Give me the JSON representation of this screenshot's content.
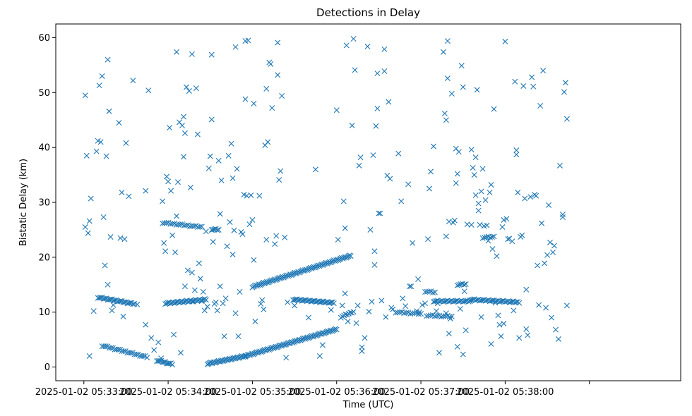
{
  "chart_data": {
    "type": "scatter",
    "title": "Detections in Delay",
    "xlabel": "Time (UTC)",
    "ylabel": "Bistatic Delay (km)",
    "x_unit": "seconds after 2025-01-02 05:33:00",
    "xlim": [
      -20,
      425
    ],
    "ylim": [
      -2.5,
      62.5
    ],
    "xticks": [
      0,
      60,
      120,
      180,
      240,
      300,
      360
    ],
    "xtick_labels": [
      "2025-01-02 05:33:00",
      "2025-01-02 05:34:00",
      "2025-01-02 05:35:00",
      "2025-01-02 05:36:00",
      "2025-01-02 05:37:00",
      "2025-01-02 05:38:00",
      ""
    ],
    "yticks": [
      0,
      10,
      20,
      30,
      40,
      50,
      60
    ],
    "ytick_labels": [
      "0",
      "10",
      "20",
      "30",
      "40",
      "50",
      "60"
    ],
    "marker": "x",
    "color": "#1f77b4",
    "grid": false,
    "tracks": [
      {
        "x_start": 10,
        "y_start": 12.7,
        "x_end": 36,
        "y_end": 11.5,
        "step": 1
      },
      {
        "x_start": 13,
        "y_start": 3.9,
        "x_end": 45,
        "y_end": 1.8,
        "step": 1.3
      },
      {
        "x_start": 52,
        "y_start": 1.2,
        "x_end": 63,
        "y_end": 0.5,
        "step": 1
      },
      {
        "x_start": 56,
        "y_start": 26.3,
        "x_end": 84,
        "y_end": 25.5,
        "step": 1.4
      },
      {
        "x_start": 58,
        "y_start": 11.6,
        "x_end": 87,
        "y_end": 12.3,
        "step": 0.9
      },
      {
        "x_start": 88,
        "y_start": 0.6,
        "x_end": 115,
        "y_end": 2.0,
        "step": 0.8
      },
      {
        "x_start": 115,
        "y_start": 2.0,
        "x_end": 180,
        "y_end": 6.9,
        "step": 0.8
      },
      {
        "x_start": 91,
        "y_start": 25.1,
        "x_end": 96,
        "y_end": 25.0,
        "step": 1
      },
      {
        "x_start": 120,
        "y_start": 14.6,
        "x_end": 190,
        "y_end": 20.3,
        "step": 0.8
      },
      {
        "x_start": 149,
        "y_start": 12.3,
        "x_end": 178,
        "y_end": 11.7,
        "step": 0.9
      },
      {
        "x_start": 183,
        "y_start": 9.1,
        "x_end": 192,
        "y_end": 10.1,
        "step": 1.2
      },
      {
        "x_start": 243,
        "y_start": 13.8,
        "x_end": 250,
        "y_end": 13.6,
        "step": 1.4
      },
      {
        "x_start": 244,
        "y_start": 9.4,
        "x_end": 262,
        "y_end": 9.2,
        "step": 1.5
      },
      {
        "x_start": 249,
        "y_start": 12.0,
        "x_end": 275,
        "y_end": 12.0,
        "step": 1
      },
      {
        "x_start": 266,
        "y_start": 15.0,
        "x_end": 272,
        "y_end": 15.1,
        "step": 1.2
      },
      {
        "x_start": 275,
        "y_start": 12.3,
        "x_end": 310,
        "y_end": 11.8,
        "step": 1
      },
      {
        "x_start": 284,
        "y_start": 23.6,
        "x_end": 292,
        "y_end": 23.7,
        "step": 1.3
      },
      {
        "x_start": 222,
        "y_start": 10.0,
        "x_end": 240,
        "y_end": 9.7,
        "step": 1.5
      }
    ],
    "points": [
      [
        1,
        49.5
      ],
      [
        1,
        25.5
      ],
      [
        2,
        38.5
      ],
      [
        3,
        24.4
      ],
      [
        4,
        26.6
      ],
      [
        5,
        30.7
      ],
      [
        4,
        2.0
      ],
      [
        7,
        10.2
      ],
      [
        9,
        39.3
      ],
      [
        10,
        41.2
      ],
      [
        11,
        51.3
      ],
      [
        12,
        41.0
      ],
      [
        13,
        53.0
      ],
      [
        14,
        27.3
      ],
      [
        15,
        18.5
      ],
      [
        16,
        38.4
      ],
      [
        17,
        56.0
      ],
      [
        17,
        15.0
      ],
      [
        18,
        46.6
      ],
      [
        19,
        23.7
      ],
      [
        20,
        10.3
      ],
      [
        21,
        11.3
      ],
      [
        25,
        44.5
      ],
      [
        26,
        23.5
      ],
      [
        27,
        31.8
      ],
      [
        28,
        9.2
      ],
      [
        29,
        23.3
      ],
      [
        30,
        40.8
      ],
      [
        32,
        31.1
      ],
      [
        35,
        52.2
      ],
      [
        38,
        11.4
      ],
      [
        44,
        32.1
      ],
      [
        44,
        7.7
      ],
      [
        46,
        50.4
      ],
      [
        48,
        5.3
      ],
      [
        50,
        3.1
      ],
      [
        53,
        4.5
      ],
      [
        55,
        1.6
      ],
      [
        56,
        30.2
      ],
      [
        57,
        22.6
      ],
      [
        58,
        21.1
      ],
      [
        59,
        34.7
      ],
      [
        60,
        33.8
      ],
      [
        61,
        43.6
      ],
      [
        62,
        32.1
      ],
      [
        63,
        24.0
      ],
      [
        64,
        5.9
      ],
      [
        65,
        20.9
      ],
      [
        66,
        57.4
      ],
      [
        66,
        27.5
      ],
      [
        67,
        33.7
      ],
      [
        68,
        44.6
      ],
      [
        69,
        2.6
      ],
      [
        70,
        44.0
      ],
      [
        71,
        38.3
      ],
      [
        71,
        45.6
      ],
      [
        72,
        42.6
      ],
      [
        72,
        14.7
      ],
      [
        73,
        51.0
      ],
      [
        74,
        17.6
      ],
      [
        75,
        50.3
      ],
      [
        76,
        32.7
      ],
      [
        77,
        57.0
      ],
      [
        77,
        17.2
      ],
      [
        78,
        11.9
      ],
      [
        79,
        14.0
      ],
      [
        80,
        50.8
      ],
      [
        81,
        42.4
      ],
      [
        82,
        18.9
      ],
      [
        83,
        16.1
      ],
      [
        84,
        12.0
      ],
      [
        85,
        13.7
      ],
      [
        86,
        10.3
      ],
      [
        87,
        24.7
      ],
      [
        88,
        11.0
      ],
      [
        89,
        36.2
      ],
      [
        90,
        38.4
      ],
      [
        91,
        45.1
      ],
      [
        91,
        56.9
      ],
      [
        92,
        22.8
      ],
      [
        93,
        11.5
      ],
      [
        94,
        11.8
      ],
      [
        95,
        10.3
      ],
      [
        96,
        37.6
      ],
      [
        97,
        27.9
      ],
      [
        97,
        14.7
      ],
      [
        98,
        34.0
      ],
      [
        99,
        11.6
      ],
      [
        100,
        5.6
      ],
      [
        101,
        12.5
      ],
      [
        102,
        22.0
      ],
      [
        103,
        38.5
      ],
      [
        104,
        26.4
      ],
      [
        105,
        40.7
      ],
      [
        106,
        34.4
      ],
      [
        106,
        20.5
      ],
      [
        107,
        24.9
      ],
      [
        108,
        58.3
      ],
      [
        108,
        9.8
      ],
      [
        109,
        36.1
      ],
      [
        110,
        5.6
      ],
      [
        111,
        13.7
      ],
      [
        112,
        24.6
      ],
      [
        113,
        24.2
      ],
      [
        114,
        31.4
      ],
      [
        115,
        59.4
      ],
      [
        115,
        48.8
      ],
      [
        116,
        31.2
      ],
      [
        117,
        59.5
      ],
      [
        118,
        26.0
      ],
      [
        119,
        31.3
      ],
      [
        120,
        26.8
      ],
      [
        121,
        48.0
      ],
      [
        121,
        19.5
      ],
      [
        122,
        8.3
      ],
      [
        125,
        31.2
      ],
      [
        126,
        11.5
      ],
      [
        127,
        12.2
      ],
      [
        128,
        10.5
      ],
      [
        129,
        40.4
      ],
      [
        130,
        50.7
      ],
      [
        130,
        23.2
      ],
      [
        131,
        41.0
      ],
      [
        132,
        55.5
      ],
      [
        133,
        55.2
      ],
      [
        134,
        47.2
      ],
      [
        136,
        22.4
      ],
      [
        137,
        23.9
      ],
      [
        138,
        59.1
      ],
      [
        138,
        53.2
      ],
      [
        139,
        34.1
      ],
      [
        140,
        35.7
      ],
      [
        141,
        49.4
      ],
      [
        143,
        23.6
      ],
      [
        144,
        1.7
      ],
      [
        145,
        11.8
      ],
      [
        150,
        11.2
      ],
      [
        160,
        9.0
      ],
      [
        165,
        36.0
      ],
      [
        168,
        2.0
      ],
      [
        170,
        4.0
      ],
      [
        176,
        10.4
      ],
      [
        180,
        46.8
      ],
      [
        181,
        23.2
      ],
      [
        184,
        11.2
      ],
      [
        185,
        30.2
      ],
      [
        186,
        25.3
      ],
      [
        186,
        13.4
      ],
      [
        187,
        58.6
      ],
      [
        188,
        8.3
      ],
      [
        191,
        44.0
      ],
      [
        192,
        59.8
      ],
      [
        193,
        54.1
      ],
      [
        194,
        8.0
      ],
      [
        195,
        11.2
      ],
      [
        196,
        36.7
      ],
      [
        197,
        38.2
      ],
      [
        198,
        2.9
      ],
      [
        198,
        3.6
      ],
      [
        200,
        5.3
      ],
      [
        202,
        58.4
      ],
      [
        203,
        10.1
      ],
      [
        204,
        25.0
      ],
      [
        205,
        11.9
      ],
      [
        206,
        38.6
      ],
      [
        207,
        21.1
      ],
      [
        207,
        18.6
      ],
      [
        208,
        43.9
      ],
      [
        209,
        47.1
      ],
      [
        209,
        53.5
      ],
      [
        210,
        28.0
      ],
      [
        211,
        28.0
      ],
      [
        212,
        12.1
      ],
      [
        214,
        53.9
      ],
      [
        214,
        57.9
      ],
      [
        215,
        9.1
      ],
      [
        216,
        34.9
      ],
      [
        217,
        48.3
      ],
      [
        218,
        34.3
      ],
      [
        219,
        10.8
      ],
      [
        220,
        10.5
      ],
      [
        224,
        38.9
      ],
      [
        226,
        30.2
      ],
      [
        227,
        12.5
      ],
      [
        229,
        11.1
      ],
      [
        231,
        33.3
      ],
      [
        232,
        14.7
      ],
      [
        233,
        14.7
      ],
      [
        234,
        22.6
      ],
      [
        237,
        10.2
      ],
      [
        238,
        16.0
      ],
      [
        239,
        10.0
      ],
      [
        241,
        11.3
      ],
      [
        243,
        11.6
      ],
      [
        245,
        23.3
      ],
      [
        246,
        32.5
      ],
      [
        247,
        35.6
      ],
      [
        249,
        40.2
      ],
      [
        251,
        10.2
      ],
      [
        252,
        11.6
      ],
      [
        253,
        2.6
      ],
      [
        256,
        57.4
      ],
      [
        257,
        46.2
      ],
      [
        258,
        45.0
      ],
      [
        258,
        23.8
      ],
      [
        258,
        9.8
      ],
      [
        259,
        59.4
      ],
      [
        259,
        52.6
      ],
      [
        260,
        26.5
      ],
      [
        260,
        6.1
      ],
      [
        261,
        8.8
      ],
      [
        262,
        49.8
      ],
      [
        263,
        26.3
      ],
      [
        264,
        26.7
      ],
      [
        265,
        33.5
      ],
      [
        265,
        39.8
      ],
      [
        266,
        35.2
      ],
      [
        266,
        3.7
      ],
      [
        267,
        39.2
      ],
      [
        268,
        10.6
      ],
      [
        269,
        54.9
      ],
      [
        270,
        51.0
      ],
      [
        270,
        2.3
      ],
      [
        271,
        13.8
      ],
      [
        272,
        6.7
      ],
      [
        273,
        26.0
      ],
      [
        276,
        39.6
      ],
      [
        276,
        25.9
      ],
      [
        277,
        36.3
      ],
      [
        278,
        35.0
      ],
      [
        279,
        38.2
      ],
      [
        279,
        31.3
      ],
      [
        280,
        50.5
      ],
      [
        281,
        29.8
      ],
      [
        281,
        28.5
      ],
      [
        282,
        25.9
      ],
      [
        283,
        9.1
      ],
      [
        283,
        32.0
      ],
      [
        284,
        36.1
      ],
      [
        285,
        25.7
      ],
      [
        286,
        30.4
      ],
      [
        287,
        25.8
      ],
      [
        288,
        23.0
      ],
      [
        289,
        31.8
      ],
      [
        290,
        33.2
      ],
      [
        290,
        4.2
      ],
      [
        291,
        21.5
      ],
      [
        292,
        47.0
      ],
      [
        293,
        11.7
      ],
      [
        294,
        20.2
      ],
      [
        295,
        9.4
      ],
      [
        296,
        7.7
      ],
      [
        297,
        5.6
      ],
      [
        298,
        25.5
      ],
      [
        299,
        7.9
      ],
      [
        299,
        26.8
      ],
      [
        300,
        59.3
      ],
      [
        301,
        27.0
      ],
      [
        302,
        23.3
      ],
      [
        303,
        23.4
      ],
      [
        305,
        22.9
      ],
      [
        306,
        10.3
      ],
      [
        307,
        52.0
      ],
      [
        308,
        39.5
      ],
      [
        308,
        38.7
      ],
      [
        309,
        31.8
      ],
      [
        310,
        5.3
      ],
      [
        311,
        23.7
      ],
      [
        312,
        24.0
      ],
      [
        313,
        51.2
      ],
      [
        314,
        30.7
      ],
      [
        315,
        14.1
      ],
      [
        315,
        6.9
      ],
      [
        316,
        5.8
      ],
      [
        318,
        31.0
      ],
      [
        319,
        52.8
      ],
      [
        320,
        51.1
      ],
      [
        321,
        31.4
      ],
      [
        322,
        31.2
      ],
      [
        323,
        18.5
      ],
      [
        324,
        11.3
      ],
      [
        325,
        47.6
      ],
      [
        326,
        26.2
      ],
      [
        327,
        54.0
      ],
      [
        328,
        18.9
      ],
      [
        329,
        10.8
      ],
      [
        330,
        20.4
      ],
      [
        331,
        29.5
      ],
      [
        332,
        22.7
      ],
      [
        333,
        9.0
      ],
      [
        334,
        20.9
      ],
      [
        335,
        22.1
      ],
      [
        336,
        6.8
      ],
      [
        338,
        5.1
      ],
      [
        339,
        36.7
      ],
      [
        341,
        27.3
      ],
      [
        341,
        27.8
      ],
      [
        342,
        50.1
      ],
      [
        343,
        51.8
      ],
      [
        344,
        45.2
      ],
      [
        344,
        11.2
      ]
    ]
  }
}
